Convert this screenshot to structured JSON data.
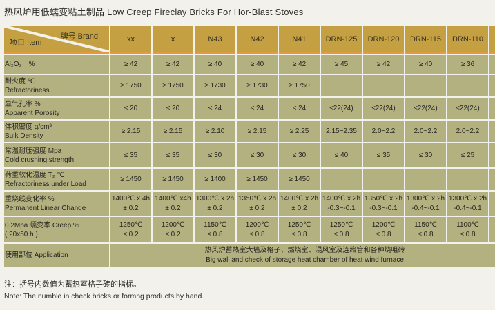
{
  "page": {
    "title": "热风炉用低蠕变粘土制品 Low Creep Fireclay Bricks For Hor-Blast Stoves",
    "note_zh": "注：括号内数值为蓄热室格子砖的指标。",
    "note_en": "Note: The numble in check bricks or formng products by hand."
  },
  "colors": {
    "header_bg": "#c5a043",
    "body_bg": "#b4b181",
    "accent_line": "#e59a3b",
    "page_bg": "#f2f1ec"
  },
  "table": {
    "corner": {
      "item_label": "项目 Item",
      "brand_label": "牌号 Brand"
    },
    "columns": [
      "xx",
      "x",
      "N43",
      "N42",
      "N41",
      "DRN-125",
      "DRN-120",
      "DRN-115",
      "DRN-110"
    ],
    "rows": [
      {
        "label_zh": "Al₂O₃　%",
        "label_en": "",
        "cells": [
          "≥ 42",
          "≥ 42",
          "≥ 40",
          "≥ 40",
          "≥ 42",
          "≥ 45",
          "≥ 42",
          "≥ 40",
          "≥ 36"
        ]
      },
      {
        "label_zh": "耐火度 ℃",
        "label_en": "Refractoriness",
        "cells": [
          "≥ 1750",
          "≥ 1750",
          "≥ 1730",
          "≥ 1730",
          "≥ 1750",
          "",
          "",
          "",
          ""
        ]
      },
      {
        "label_zh": "显气孔率 %",
        "label_en": "Apparent Porosity",
        "cells": [
          "≤ 20",
          "≤ 20",
          "≤ 24",
          "≤ 24",
          "≤ 24",
          "≤22(24)",
          "≤22(24)",
          "≤22(24)",
          "≤22(24)"
        ]
      },
      {
        "label_zh": "体积密度 g/cm³",
        "label_en": "Bulk Density",
        "cells": [
          "≥ 2.15",
          "≥ 2.15",
          "≥ 2.10",
          "≥ 2.15",
          "≥ 2.25",
          "2.15~2.35",
          "2.0~2.2",
          "2.0~2.2",
          "2.0~2.2"
        ]
      },
      {
        "label_zh": "常温耐压强度 Mpa",
        "label_en": "Cold crushing strength",
        "cells": [
          "≤ 35",
          "≤ 35",
          "≤ 30",
          "≤ 30",
          "≤ 30",
          "≤ 40",
          "≤ 35",
          "≤ 30",
          "≤ 25"
        ]
      },
      {
        "label_zh": "荷重软化温度 T₂ ℃",
        "label_en": "Refractoriness under Load",
        "cells": [
          "≥ 1450",
          "≥ 1450",
          "≥ 1400",
          "≥ 1450",
          "≥ 1450",
          "",
          "",
          "",
          ""
        ]
      },
      {
        "label_zh": "重烧线变化率 %",
        "label_en": "Permanent Linear Change",
        "cells": [
          "1400℃ x 4h\n± 0.2",
          "1400℃ x4h\n± 0.2",
          "1300℃ x 2h\n± 0.2",
          "1350℃ x 2h\n± 0.2",
          "1400℃ x 2h\n± 0.2",
          "1400℃ x 2h\n-0.3~-0.1",
          "1350℃ x 2h\n-0.3~-0.1",
          "1300℃ x 2h\n-0.4~-0.1",
          "1300℃ x 2h\n-0.4~-0.1"
        ]
      },
      {
        "label_zh": "0.2Mpa 蠕变率 Creep %",
        "label_en": "( 20x50 h )",
        "cells": [
          "1250℃\n≤ 0.2",
          "1200℃\n≤ 0.2",
          "1150℃\n≤ 0.8",
          "1200℃\n≤ 0.8",
          "1250℃\n≤ 0.8",
          "1250℃\n≤ 0.8",
          "1200℃\n≤ 0.8",
          "1150℃\n≤ 0.8",
          "1100℃\n≤ 0.8"
        ]
      }
    ],
    "application": {
      "label": "使用部位 Application",
      "text_zh": "热风炉蓄热室大墙及格子、燃烧室、混风室及连络管和各种烧咀砖",
      "text_en": "Big wall and check of storage heat chamber of heat wind furnace"
    }
  }
}
